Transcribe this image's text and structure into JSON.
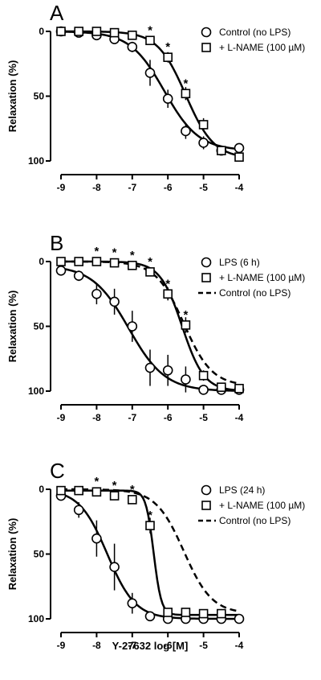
{
  "chart_data": [
    {
      "type": "line",
      "panel_label": "A",
      "ylabel": "Relaxation (%)",
      "xlabel": "",
      "xlim": [
        -9,
        -4
      ],
      "ylim": [
        0,
        100
      ],
      "y_inverted": true,
      "xticks": [
        "-9",
        "-8",
        "-7",
        "-6",
        "-5",
        "-4"
      ],
      "yticks": [
        "0",
        "50",
        "100"
      ],
      "legend_position": "top-right",
      "series": [
        {
          "name": "Control (no LPS)",
          "marker": "circle",
          "line": "solid",
          "x": [
            -9,
            -8.5,
            -8,
            -7.5,
            -7,
            -6.5,
            -6,
            -5.5,
            -5,
            -4.5,
            -4
          ],
          "y": [
            0,
            1,
            3,
            6,
            12,
            32,
            52,
            77,
            86,
            92,
            90
          ],
          "err": [
            0,
            0,
            2,
            3,
            4,
            10,
            7,
            6,
            5,
            3,
            2
          ],
          "fit": {
            "bottom": 0,
            "top": 92,
            "logEC50": -6.1,
            "hill": 0.9
          }
        },
        {
          "name": "+ L-NAME (100 µM)",
          "marker": "square",
          "line": "solid",
          "x": [
            -9,
            -8.5,
            -8,
            -7.5,
            -7,
            -6.5,
            -6,
            -5.5,
            -5,
            -4.5,
            -4
          ],
          "y": [
            0,
            0,
            0,
            1,
            3,
            7,
            20,
            48,
            72,
            92,
            97
          ],
          "err": [
            0,
            0,
            0,
            0,
            2,
            3,
            4,
            5,
            5,
            3,
            2
          ],
          "fit": {
            "bottom": 0,
            "top": 98,
            "logEC50": -5.5,
            "hill": 1.1
          }
        }
      ],
      "annotations": [
        {
          "text": "*",
          "x": -6.5
        },
        {
          "text": "*",
          "x": -6
        },
        {
          "text": "*",
          "x": -5.5
        }
      ]
    },
    {
      "type": "line",
      "panel_label": "B",
      "ylabel": "Relaxation (%)",
      "xlabel": "",
      "xlim": [
        -9,
        -4
      ],
      "ylim": [
        0,
        100
      ],
      "y_inverted": true,
      "xticks": [
        "-9",
        "-8",
        "-7",
        "-6",
        "-5",
        "-4"
      ],
      "yticks": [
        "0",
        "50",
        "100"
      ],
      "legend_position": "top-right",
      "series": [
        {
          "name": "LPS (6 h)",
          "marker": "circle",
          "line": "solid",
          "x": [
            -9,
            -8.5,
            -8,
            -7.5,
            -7,
            -6.5,
            -6,
            -5.5,
            -5,
            -4.5,
            -4
          ],
          "y": [
            7,
            11,
            25,
            31,
            50,
            82,
            84,
            91,
            99,
            99,
            99
          ],
          "err": [
            2,
            4,
            8,
            10,
            12,
            14,
            12,
            10,
            3,
            2,
            2
          ],
          "fit": {
            "bottom": 3,
            "top": 100,
            "logEC50": -7.1,
            "hill": 0.85
          }
        },
        {
          "name": "+ L-NAME (100 µM)",
          "marker": "square",
          "line": "solid",
          "x": [
            -9,
            -8.5,
            -8,
            -7.5,
            -7,
            -6.5,
            -6,
            -5.5,
            -5,
            -4.5,
            -4
          ],
          "y": [
            0,
            0,
            0,
            1,
            3,
            8,
            25,
            49,
            88,
            97,
            98
          ],
          "err": [
            0,
            0,
            0,
            0,
            2,
            3,
            5,
            6,
            4,
            2,
            2
          ],
          "fit": {
            "bottom": 0,
            "top": 100,
            "logEC50": -5.6,
            "hill": 1.4
          }
        },
        {
          "name": "Control (no LPS)",
          "marker": "none",
          "line": "dashed",
          "x": [],
          "y": [],
          "fit": {
            "bottom": 0,
            "top": 96,
            "logEC50": -5.55,
            "hill": 1.1
          }
        }
      ],
      "annotations": [
        {
          "text": "*",
          "x": -8
        },
        {
          "text": "*",
          "x": -7.5
        },
        {
          "text": "*",
          "x": -7
        },
        {
          "text": "*",
          "x": -6.5
        },
        {
          "text": "*",
          "x": -6
        },
        {
          "text": "*",
          "x": -5.5
        }
      ]
    },
    {
      "type": "line",
      "panel_label": "C",
      "ylabel": "Relaxation (%)",
      "xlabel": "Y-27632 log [M]",
      "xlim": [
        -9,
        -4
      ],
      "ylim": [
        0,
        100
      ],
      "y_inverted": true,
      "xticks": [
        "-9",
        "-8",
        "-7",
        "-6",
        "-5",
        "-4"
      ],
      "yticks": [
        "0",
        "50",
        "100"
      ],
      "legend_position": "top-right",
      "series": [
        {
          "name": "LPS (24 h)",
          "marker": "circle",
          "line": "solid",
          "x": [
            -9,
            -8.5,
            -8,
            -7.5,
            -7,
            -6.5,
            -6,
            -5.5,
            -5,
            -4.5,
            -4
          ],
          "y": [
            5,
            16,
            38,
            60,
            88,
            98,
            100,
            100,
            100,
            100,
            100
          ],
          "err": [
            2,
            6,
            14,
            18,
            8,
            2,
            2,
            2,
            2,
            2,
            2
          ],
          "fit": {
            "bottom": 0,
            "top": 100,
            "logEC50": -7.7,
            "hill": 1.1
          }
        },
        {
          "name": "+ L-NAME (100 µM)",
          "marker": "square",
          "line": "solid",
          "x": [
            -9,
            -8.5,
            -8,
            -7.5,
            -7,
            -6.5,
            -6,
            -5.5,
            -5,
            -4.5
          ],
          "y": [
            1,
            1,
            2,
            5,
            8,
            28,
            95,
            95,
            96,
            96
          ],
          "err": [
            0,
            0,
            0,
            1,
            2,
            6,
            3,
            3,
            3,
            3
          ],
          "fit": {
            "bottom": 1,
            "top": 97,
            "logEC50": -6.4,
            "hill": 4
          }
        },
        {
          "name": "Control (no LPS)",
          "marker": "none",
          "line": "dashed",
          "x": [],
          "y": [],
          "fit": {
            "bottom": 0,
            "top": 96,
            "logEC50": -5.55,
            "hill": 1.1
          }
        }
      ],
      "annotations": [
        {
          "text": "*",
          "x": -8
        },
        {
          "text": "*",
          "x": -7.5
        },
        {
          "text": "*",
          "x": -7
        },
        {
          "text": "*",
          "x": -6.5
        }
      ]
    }
  ]
}
